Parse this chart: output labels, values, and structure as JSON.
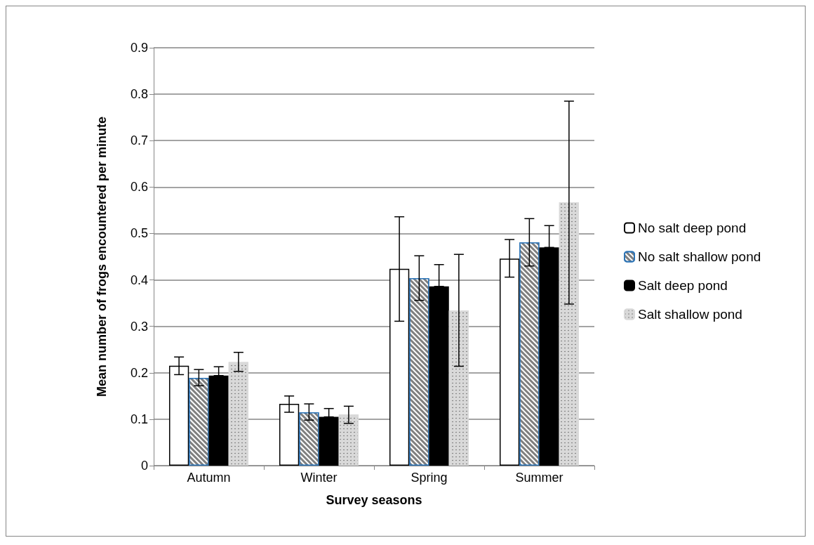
{
  "chart_data": {
    "type": "bar",
    "xlabel": "Survey seasons",
    "ylabel": "Mean number of frogs encountered per minute",
    "categories": [
      "Autumn",
      "Winter",
      "Spring",
      "Summer"
    ],
    "series": [
      {
        "name": "No salt deep pond",
        "color": "#ffffff",
        "values": [
          0.215,
          0.133,
          0.424,
          0.446
        ],
        "errors": [
          [
            0.196,
            0.234
          ],
          [
            0.115,
            0.15
          ],
          [
            0.311,
            0.536
          ],
          [
            0.406,
            0.487
          ]
        ]
      },
      {
        "name": "No salt shallow pond",
        "color": "#7f7f7f",
        "values": [
          0.189,
          0.115,
          0.404,
          0.481
        ],
        "errors": [
          [
            0.172,
            0.207
          ],
          [
            0.098,
            0.133
          ],
          [
            0.356,
            0.452
          ],
          [
            0.43,
            0.532
          ]
        ]
      },
      {
        "name": "Salt deep pond",
        "color": "#000000",
        "values": [
          0.194,
          0.105,
          0.386,
          0.47
        ],
        "errors": [
          [
            0.194,
            0.213
          ],
          [
            0.105,
            0.123
          ],
          [
            0.386,
            0.433
          ],
          [
            0.47,
            0.517
          ]
        ]
      },
      {
        "name": "Salt shallow pond",
        "color": "#d9d9d9",
        "values": [
          0.223,
          0.11,
          0.334,
          0.567
        ],
        "errors": [
          [
            0.203,
            0.244
          ],
          [
            0.091,
            0.128
          ],
          [
            0.214,
            0.455
          ],
          [
            0.348,
            0.785
          ]
        ]
      }
    ],
    "ylim": [
      0,
      0.9
    ],
    "yticks": [
      0,
      0.1,
      0.2,
      0.3,
      0.4,
      0.5,
      0.6,
      0.7,
      0.8,
      0.9
    ],
    "grid": "y",
    "legend": "right"
  }
}
